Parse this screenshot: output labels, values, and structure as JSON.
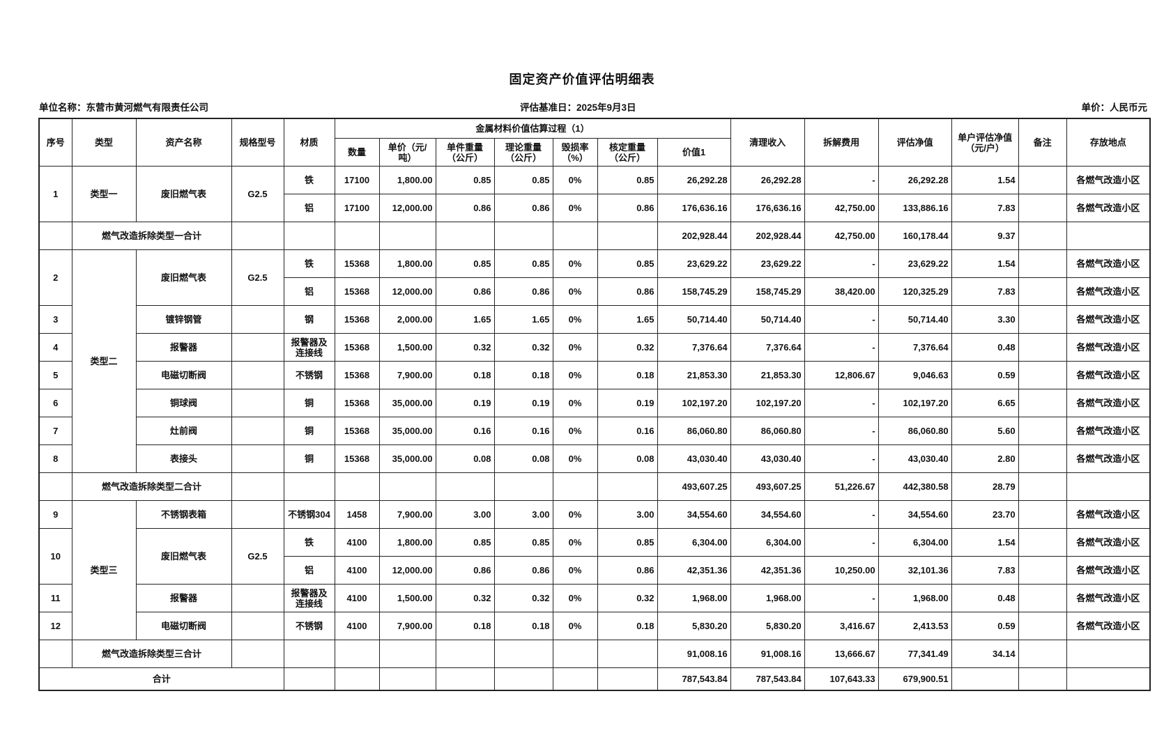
{
  "title": "固定资产价值评估明细表",
  "unit_name": "单位名称：东营市黄河燃气有限责任公司",
  "base_date": "评估基准日：2025年9月3日",
  "currency": "单价：人民币元",
  "headers": {
    "no": "序号",
    "type": "类型",
    "name": "资产名称",
    "spec": "规格型号",
    "material": "材质",
    "group": "金属材料价值估算过程（1）",
    "qty": "数量",
    "price": "单价（元/吨）",
    "unit_wt": "单件重量（公斤）",
    "theo_wt": "理论重量（公斤）",
    "loss": "毁损率（%）",
    "appr_wt": "核定重量（公斤）",
    "value1": "价值1",
    "salvage": "清理收入",
    "dismantle": "拆解费用",
    "net": "评估净值",
    "per_household": "单户评估净值（元/户）",
    "remark": "备注",
    "location": "存放地点"
  },
  "rows": [
    {
      "kind": "item",
      "no": "1",
      "type": "类型一",
      "name": "废旧燃气表",
      "spec": "G2.5",
      "material": "铁",
      "qty": "17100",
      "price": "1,800.00",
      "unit_wt": "0.85",
      "theo_wt": "0.85",
      "loss": "0%",
      "appr_wt": "0.85",
      "value1": "26,292.28",
      "salvage": "26,292.28",
      "dismantle": "-",
      "net": "26,292.28",
      "per_household": "1.54",
      "remark": "",
      "location": "各燃气改造小区"
    },
    {
      "kind": "item",
      "no": "1",
      "type": "类型一",
      "name": "废旧燃气表",
      "spec": "G2.5",
      "material": "铝",
      "qty": "17100",
      "price": "12,000.00",
      "unit_wt": "0.86",
      "theo_wt": "0.86",
      "loss": "0%",
      "appr_wt": "0.86",
      "value1": "176,636.16",
      "salvage": "176,636.16",
      "dismantle": "42,750.00",
      "net": "133,886.16",
      "per_household": "7.83",
      "remark": "",
      "location": "各燃气改造小区"
    },
    {
      "kind": "subtotal",
      "label": "燃气改造拆除类型一合计",
      "value1": "202,928.44",
      "salvage": "202,928.44",
      "dismantle": "42,750.00",
      "net": "160,178.44",
      "per_household": "9.37"
    },
    {
      "kind": "item",
      "no": "2",
      "type": "类型二",
      "name": "废旧燃气表",
      "spec": "G2.5",
      "material": "铁",
      "qty": "15368",
      "price": "1,800.00",
      "unit_wt": "0.85",
      "theo_wt": "0.85",
      "loss": "0%",
      "appr_wt": "0.85",
      "value1": "23,629.22",
      "salvage": "23,629.22",
      "dismantle": "-",
      "net": "23,629.22",
      "per_household": "1.54",
      "remark": "",
      "location": "各燃气改造小区"
    },
    {
      "kind": "item",
      "no": "2",
      "type": "类型二",
      "name": "废旧燃气表",
      "spec": "G2.5",
      "material": "铝",
      "qty": "15368",
      "price": "12,000.00",
      "unit_wt": "0.86",
      "theo_wt": "0.86",
      "loss": "0%",
      "appr_wt": "0.86",
      "value1": "158,745.29",
      "salvage": "158,745.29",
      "dismantle": "38,420.00",
      "net": "120,325.29",
      "per_household": "7.83",
      "remark": "",
      "location": "各燃气改造小区"
    },
    {
      "kind": "item",
      "no": "3",
      "type": "类型二",
      "name": "镀锌钢管",
      "spec": "",
      "material": "钢",
      "qty": "15368",
      "price": "2,000.00",
      "unit_wt": "1.65",
      "theo_wt": "1.65",
      "loss": "0%",
      "appr_wt": "1.65",
      "value1": "50,714.40",
      "salvage": "50,714.40",
      "dismantle": "-",
      "net": "50,714.40",
      "per_household": "3.30",
      "remark": "",
      "location": "各燃气改造小区"
    },
    {
      "kind": "item",
      "no": "4",
      "type": "类型二",
      "name": "报警器",
      "spec": "",
      "material": "报警器及连接线",
      "qty": "15368",
      "price": "1,500.00",
      "unit_wt": "0.32",
      "theo_wt": "0.32",
      "loss": "0%",
      "appr_wt": "0.32",
      "value1": "7,376.64",
      "salvage": "7,376.64",
      "dismantle": "-",
      "net": "7,376.64",
      "per_household": "0.48",
      "remark": "",
      "location": "各燃气改造小区"
    },
    {
      "kind": "item",
      "no": "5",
      "type": "类型二",
      "name": "电磁切断阀",
      "spec": "",
      "material": "不锈钢",
      "qty": "15368",
      "price": "7,900.00",
      "unit_wt": "0.18",
      "theo_wt": "0.18",
      "loss": "0%",
      "appr_wt": "0.18",
      "value1": "21,853.30",
      "salvage": "21,853.30",
      "dismantle": "12,806.67",
      "net": "9,046.63",
      "per_household": "0.59",
      "remark": "",
      "location": "各燃气改造小区"
    },
    {
      "kind": "item",
      "no": "6",
      "type": "类型二",
      "name": "铜球阀",
      "spec": "",
      "material": "铜",
      "qty": "15368",
      "price": "35,000.00",
      "unit_wt": "0.19",
      "theo_wt": "0.19",
      "loss": "0%",
      "appr_wt": "0.19",
      "value1": "102,197.20",
      "salvage": "102,197.20",
      "dismantle": "-",
      "net": "102,197.20",
      "per_household": "6.65",
      "remark": "",
      "location": "各燃气改造小区"
    },
    {
      "kind": "item",
      "no": "7",
      "type": "类型二",
      "name": "灶前阀",
      "spec": "",
      "material": "铜",
      "qty": "15368",
      "price": "35,000.00",
      "unit_wt": "0.16",
      "theo_wt": "0.16",
      "loss": "0%",
      "appr_wt": "0.16",
      "value1": "86,060.80",
      "salvage": "86,060.80",
      "dismantle": "-",
      "net": "86,060.80",
      "per_household": "5.60",
      "remark": "",
      "location": "各燃气改造小区"
    },
    {
      "kind": "item",
      "no": "8",
      "type": "类型二",
      "name": "表接头",
      "spec": "",
      "material": "铜",
      "qty": "15368",
      "price": "35,000.00",
      "unit_wt": "0.08",
      "theo_wt": "0.08",
      "loss": "0%",
      "appr_wt": "0.08",
      "value1": "43,030.40",
      "salvage": "43,030.40",
      "dismantle": "-",
      "net": "43,030.40",
      "per_household": "2.80",
      "remark": "",
      "location": "各燃气改造小区"
    },
    {
      "kind": "subtotal",
      "label": "燃气改造拆除类型二合计",
      "value1": "493,607.25",
      "salvage": "493,607.25",
      "dismantle": "51,226.67",
      "net": "442,380.58",
      "per_household": "28.79"
    },
    {
      "kind": "item",
      "no": "9",
      "type": "类型三",
      "name": "不锈钢表箱",
      "spec": "",
      "material": "不锈钢304",
      "qty": "1458",
      "price": "7,900.00",
      "unit_wt": "3.00",
      "theo_wt": "3.00",
      "loss": "0%",
      "appr_wt": "3.00",
      "value1": "34,554.60",
      "salvage": "34,554.60",
      "dismantle": "-",
      "net": "34,554.60",
      "per_household": "23.70",
      "remark": "",
      "location": "各燃气改造小区"
    },
    {
      "kind": "item",
      "no": "10",
      "type": "类型三",
      "name": "废旧燃气表",
      "spec": "G2.5",
      "material": "铁",
      "qty": "4100",
      "price": "1,800.00",
      "unit_wt": "0.85",
      "theo_wt": "0.85",
      "loss": "0%",
      "appr_wt": "0.85",
      "value1": "6,304.00",
      "salvage": "6,304.00",
      "dismantle": "-",
      "net": "6,304.00",
      "per_household": "1.54",
      "remark": "",
      "location": "各燃气改造小区"
    },
    {
      "kind": "item",
      "no": "10",
      "type": "类型三",
      "name": "废旧燃气表",
      "spec": "G2.5",
      "material": "铝",
      "qty": "4100",
      "price": "12,000.00",
      "unit_wt": "0.86",
      "theo_wt": "0.86",
      "loss": "0%",
      "appr_wt": "0.86",
      "value1": "42,351.36",
      "salvage": "42,351.36",
      "dismantle": "10,250.00",
      "net": "32,101.36",
      "per_household": "7.83",
      "remark": "",
      "location": "各燃气改造小区"
    },
    {
      "kind": "item",
      "no": "11",
      "type": "类型三",
      "name": "报警器",
      "spec": "",
      "material": "报警器及连接线",
      "qty": "4100",
      "price": "1,500.00",
      "unit_wt": "0.32",
      "theo_wt": "0.32",
      "loss": "0%",
      "appr_wt": "0.32",
      "value1": "1,968.00",
      "salvage": "1,968.00",
      "dismantle": "-",
      "net": "1,968.00",
      "per_household": "0.48",
      "remark": "",
      "location": "各燃气改造小区"
    },
    {
      "kind": "item",
      "no": "12",
      "type": "类型三",
      "name": "电磁切断阀",
      "spec": "",
      "material": "不锈钢",
      "qty": "4100",
      "price": "7,900.00",
      "unit_wt": "0.18",
      "theo_wt": "0.18",
      "loss": "0%",
      "appr_wt": "0.18",
      "value1": "5,830.20",
      "salvage": "5,830.20",
      "dismantle": "3,416.67",
      "net": "2,413.53",
      "per_household": "0.59",
      "remark": "",
      "location": "各燃气改造小区"
    },
    {
      "kind": "subtotal",
      "label": "燃气改造拆除类型三合计",
      "value1": "91,008.16",
      "salvage": "91,008.16",
      "dismantle": "13,666.67",
      "net": "77,341.49",
      "per_household": "34.14"
    },
    {
      "kind": "total",
      "label": "合计",
      "value1": "787,543.84",
      "salvage": "787,543.84",
      "dismantle": "107,643.33",
      "net": "679,900.51",
      "per_household": ""
    }
  ]
}
